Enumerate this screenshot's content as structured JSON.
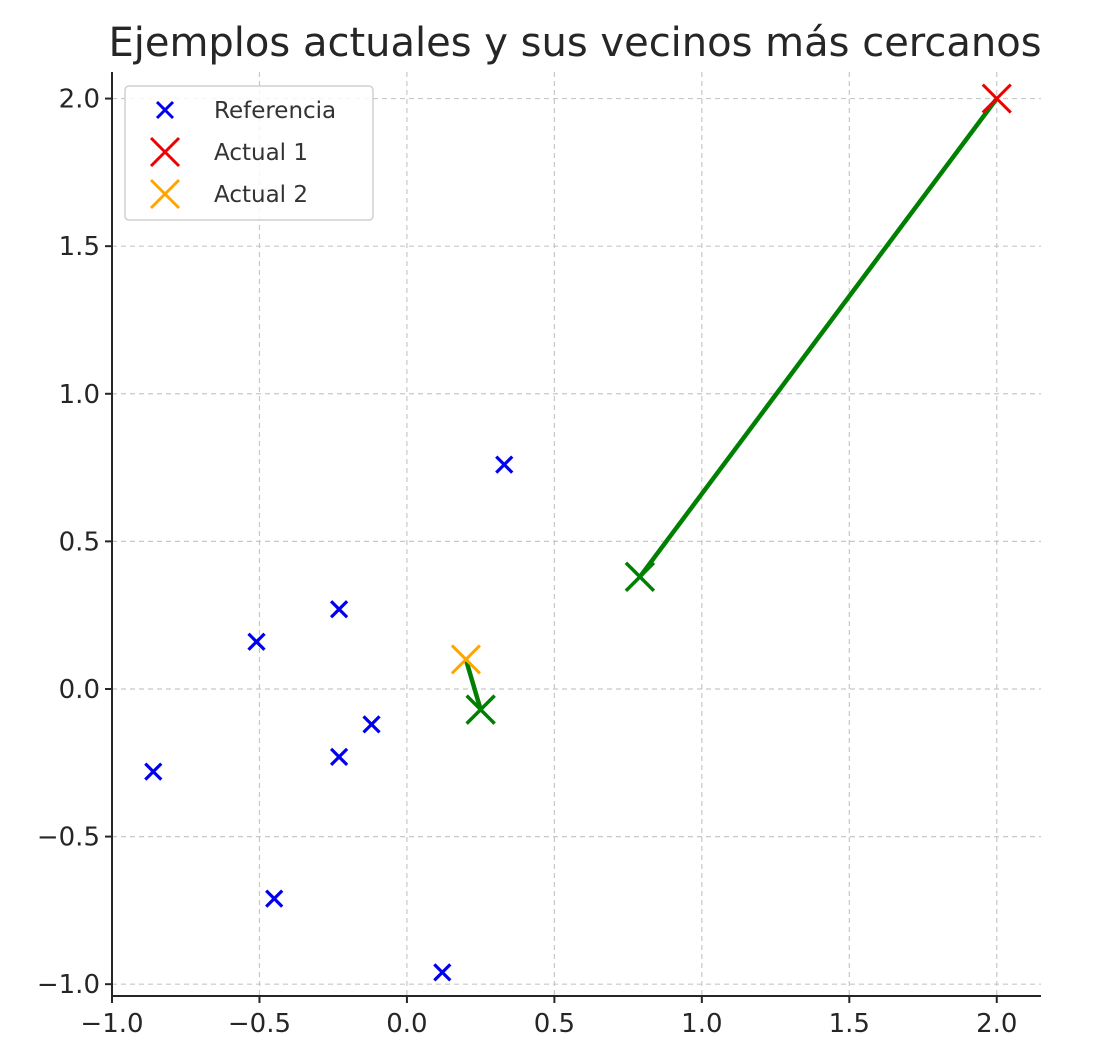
{
  "chart_data": {
    "type": "scatter",
    "title": "Ejemplos actuales y sus vecinos más cercanos",
    "xlabel": "",
    "ylabel": "",
    "xlim": [
      -1.0,
      2.15
    ],
    "ylim": [
      -1.04,
      2.09
    ],
    "x_ticks": [
      -1.0,
      -0.5,
      0.0,
      0.5,
      1.0,
      1.5,
      2.0
    ],
    "y_ticks": [
      -1.0,
      -0.5,
      0.0,
      0.5,
      1.0,
      1.5,
      2.0
    ],
    "x_tick_labels": [
      "−1.0",
      "−0.5",
      "0.0",
      "0.5",
      "1.0",
      "1.5",
      "2.0"
    ],
    "y_tick_labels": [
      "−1.0",
      "−0.5",
      "0.0",
      "0.5",
      "1.0",
      "1.5",
      "2.0"
    ],
    "grid": true,
    "legend_position": "top-left",
    "series": [
      {
        "name": "Referencia",
        "color": "#0000ee",
        "marker": "x",
        "points": [
          {
            "x": -0.86,
            "y": -0.28
          },
          {
            "x": -0.51,
            "y": 0.16
          },
          {
            "x": -0.23,
            "y": 0.27
          },
          {
            "x": -0.12,
            "y": -0.12
          },
          {
            "x": -0.23,
            "y": -0.23
          },
          {
            "x": -0.45,
            "y": -0.71
          },
          {
            "x": 0.12,
            "y": -0.96
          },
          {
            "x": 0.33,
            "y": 0.76
          }
        ]
      },
      {
        "name": "Actual 1",
        "color": "#ee0000",
        "marker": "x-large",
        "points": [
          {
            "x": 2.0,
            "y": 2.0
          }
        ]
      },
      {
        "name": "Actual 2",
        "color": "#ffa500",
        "marker": "x-large",
        "points": [
          {
            "x": 0.2,
            "y": 0.1
          }
        ]
      }
    ],
    "nearest_neighbors": {
      "color": "#008000",
      "points": [
        {
          "x": 0.79,
          "y": 0.38
        },
        {
          "x": 0.25,
          "y": -0.07
        }
      ],
      "links": [
        {
          "from": {
            "x": 2.0,
            "y": 2.0
          },
          "to": {
            "x": 0.79,
            "y": 0.38
          }
        },
        {
          "from": {
            "x": 0.2,
            "y": 0.1
          },
          "to": {
            "x": 0.25,
            "y": -0.07
          }
        }
      ]
    }
  }
}
